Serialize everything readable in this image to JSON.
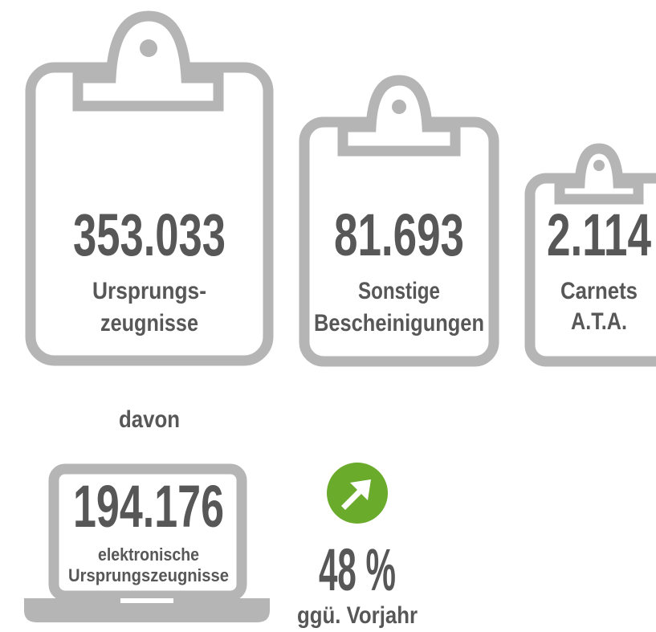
{
  "stats": [
    {
      "value": "353.033",
      "label": [
        "Ursprungs-",
        "zeugnisse"
      ]
    },
    {
      "value": "81.693",
      "label": [
        "Sonstige",
        "Bescheinigungen"
      ]
    },
    {
      "value": "2.114",
      "label": [
        "Carnets",
        "A.T.A."
      ]
    }
  ],
  "sub_label": "davon",
  "electronic": {
    "value": "194.176",
    "label": [
      "elektronische",
      "Ursprungszeugnisse"
    ]
  },
  "change": {
    "value": "48 %",
    "label": "ggü. Vorjahr"
  }
}
